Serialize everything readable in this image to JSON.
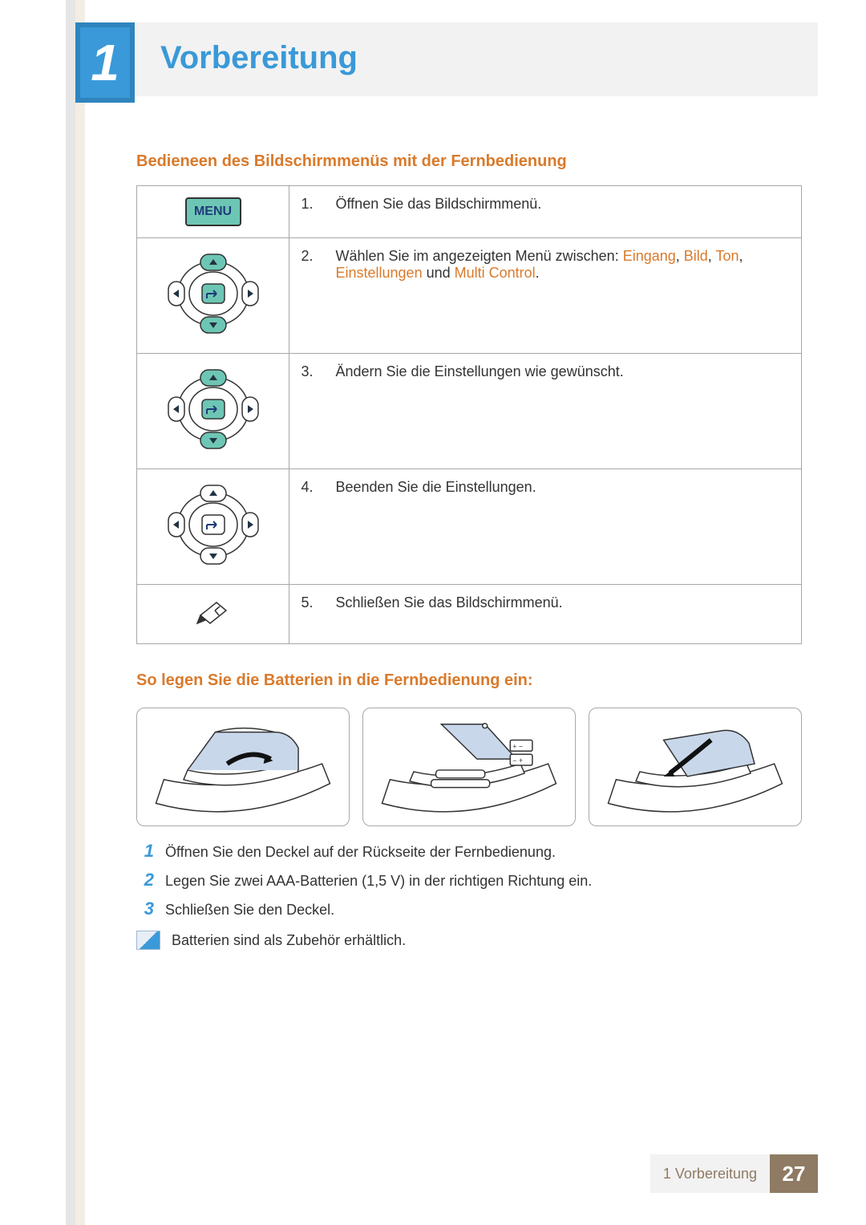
{
  "chapter": {
    "number": "1",
    "title": "Vorbereitung"
  },
  "section1": {
    "title": "Bedieneen des Bildschirmmenüs mit der Fernbedienung",
    "rows": [
      {
        "icon": "menu",
        "num": "1.",
        "text_pre": "Öffnen Sie das Bildschirmmenü."
      },
      {
        "icon": "dpad-hi",
        "num": "2.",
        "text_pre": "Wählen Sie im angezeigten Menü zwischen: ",
        "links": [
          "Eingang",
          "Bild",
          "Ton",
          "Einstellungen",
          "Multi Control"
        ],
        "joiners": [
          ", ",
          ", ",
          ", ",
          " und ",
          "."
        ]
      },
      {
        "icon": "dpad-hi",
        "num": "3.",
        "text_pre": "Ändern Sie die Einstellungen wie gewünscht."
      },
      {
        "icon": "dpad",
        "num": "4.",
        "text_pre": "Beenden Sie die Einstellungen."
      },
      {
        "icon": "exit",
        "num": "5.",
        "text_pre": "Schließen Sie das Bildschirmmenü."
      }
    ]
  },
  "section2": {
    "title": "So legen Sie die Batterien in die Fernbedienung ein:",
    "steps": [
      {
        "n": "1",
        "t": "Öffnen Sie den Deckel auf der Rückseite der Fernbedienung."
      },
      {
        "n": "2",
        "t": "Legen Sie zwei AAA-Batterien (1,5 V) in der richtigen Richtung ein."
      },
      {
        "n": "3",
        "t": "Schließen Sie den Deckel."
      }
    ],
    "note": "Batterien sind als Zubehör erhältlich."
  },
  "footer": {
    "label": "1 Vorbereitung",
    "page": "27"
  },
  "icons": {
    "menu_label": "MENU"
  },
  "colors": {
    "accent_blue": "#3a99d8",
    "accent_orange": "#d97a2b",
    "footer_brown": "#8f7b63"
  }
}
